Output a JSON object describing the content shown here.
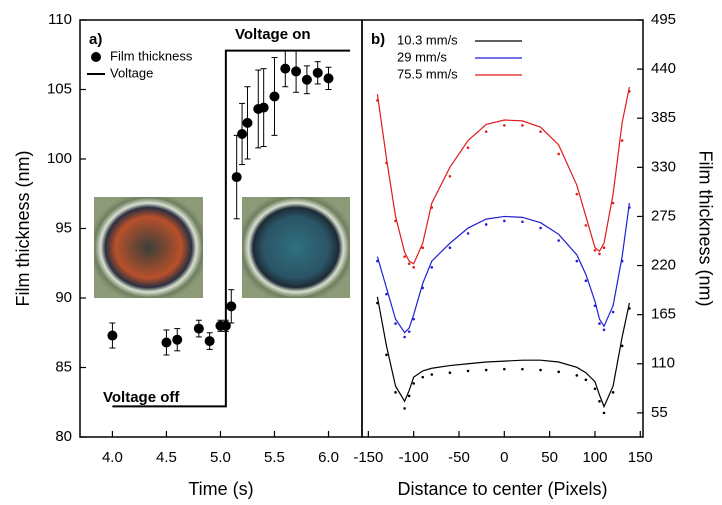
{
  "chart_data": [
    {
      "type": "scatter",
      "panel_label": "a)",
      "xlabel": "Time (s)",
      "ylabel": "Film thickness (nm)",
      "xlim": [
        3.7,
        6.31
      ],
      "xticks": [
        {
          "value": 4,
          "label": "4.0"
        },
        {
          "value": 4.5,
          "label": "4.5"
        },
        {
          "value": 5,
          "label": "5.0"
        },
        {
          "value": 5.5,
          "label": "5.5"
        },
        {
          "value": 6,
          "label": "6.0"
        }
      ],
      "ylim": [
        80,
        110
      ],
      "yticks": [
        80,
        85,
        90,
        95,
        100,
        105,
        110
      ],
      "annotations": [
        "Voltage off",
        "Voltage on"
      ],
      "series": [
        {
          "name": "Film thickness",
          "style": "markers",
          "color": "#000000",
          "x": [
            4.0,
            4.5,
            4.6,
            4.8,
            4.9,
            5.0,
            5.05,
            5.1,
            5.15,
            5.2,
            5.25,
            5.35,
            5.4,
            5.5,
            5.6,
            5.7,
            5.8,
            5.9,
            6.0
          ],
          "values": [
            87.3,
            86.8,
            87.0,
            87.8,
            86.9,
            88.0,
            88.0,
            89.4,
            98.7,
            101.8,
            102.6,
            103.6,
            103.7,
            104.5,
            106.5,
            106.3,
            105.7,
            106.2,
            105.8
          ],
          "errors": [
            0.9,
            0.9,
            0.8,
            0.6,
            0.6,
            0.4,
            0.4,
            1.2,
            3.0,
            2.2,
            2.6,
            2.8,
            2.8,
            2.8,
            1.3,
            1.5,
            1.0,
            0.8,
            0.8
          ]
        },
        {
          "name": "Voltage",
          "style": "line",
          "color": "#000000",
          "x": [
            4.0,
            5.05,
            5.05,
            6.2
          ],
          "values": [
            82.2,
            82.2,
            107.8,
            107.8
          ]
        }
      ]
    },
    {
      "type": "line",
      "panel_label": "b)",
      "xlabel": "Distance to center (Pixels)",
      "y2label": "Film thickness (nm)",
      "xlim": [
        -157,
        153
      ],
      "xticks": [
        -150,
        -100,
        -50,
        0,
        50,
        100,
        150
      ],
      "y2lim": [
        28,
        495
      ],
      "y2ticks": [
        55,
        110,
        165,
        220,
        275,
        330,
        385,
        440,
        495
      ],
      "series": [
        {
          "name": "10.3 mm/s",
          "style": "line",
          "axis": "y2",
          "color": "#000000",
          "x": [
            -140,
            -130,
            -120,
            -110,
            -105,
            -100,
            -90,
            -80,
            -60,
            -40,
            -20,
            0,
            20,
            40,
            60,
            80,
            90,
            100,
            105,
            110,
            120,
            130,
            138
          ],
          "values": [
            185,
            130,
            85,
            68,
            80,
            95,
            102,
            105,
            108,
            110,
            112,
            113,
            114,
            114,
            112,
            106,
            100,
            90,
            75,
            62,
            85,
            140,
            178
          ]
        },
        {
          "name": "29 mm/s",
          "style": "line",
          "axis": "y2",
          "color": "#1f1fd6",
          "x": [
            -140,
            -130,
            -120,
            -110,
            -105,
            -100,
            -90,
            -80,
            -60,
            -40,
            -20,
            0,
            20,
            40,
            60,
            80,
            90,
            100,
            105,
            110,
            120,
            130,
            138
          ],
          "values": [
            230,
            195,
            160,
            145,
            150,
            165,
            200,
            225,
            245,
            262,
            272,
            275,
            274,
            268,
            255,
            232,
            210,
            180,
            160,
            152,
            175,
            230,
            290
          ]
        },
        {
          "name": "75.5 mm/s",
          "style": "line",
          "axis": "y2",
          "color": "#e01b1b",
          "x": [
            -140,
            -130,
            -120,
            -110,
            -105,
            -100,
            -90,
            -80,
            -60,
            -40,
            -20,
            0,
            20,
            40,
            60,
            80,
            90,
            100,
            105,
            110,
            120,
            130,
            138
          ],
          "values": [
            412,
            340,
            275,
            235,
            225,
            222,
            245,
            290,
            330,
            360,
            378,
            383,
            382,
            375,
            355,
            310,
            275,
            240,
            236,
            245,
            300,
            380,
            420
          ]
        },
        {
          "style": "dots",
          "axis": "y2",
          "color": "#000000",
          "x": [
            -140,
            -130,
            -120,
            -110,
            -105,
            -100,
            -90,
            -80,
            -60,
            -40,
            -20,
            0,
            20,
            40,
            60,
            80,
            90,
            100,
            105,
            110,
            120,
            130,
            138
          ],
          "values": [
            178,
            120,
            78,
            60,
            74,
            88,
            95,
            98,
            100,
            102,
            103,
            104,
            104,
            103,
            101,
            97,
            92,
            82,
            68,
            55,
            78,
            130,
            172
          ]
        },
        {
          "style": "dots",
          "axis": "y2",
          "color": "#1f1fd6",
          "x": [
            -140,
            -130,
            -120,
            -110,
            -105,
            -100,
            -90,
            -80,
            -60,
            -40,
            -20,
            0,
            20,
            40,
            60,
            80,
            90,
            100,
            105,
            110,
            120,
            130,
            138
          ],
          "values": [
            225,
            188,
            155,
            140,
            146,
            160,
            195,
            218,
            240,
            256,
            266,
            270,
            269,
            262,
            248,
            225,
            203,
            175,
            155,
            148,
            168,
            225,
            285
          ]
        },
        {
          "style": "dots",
          "axis": "y2",
          "color": "#e01b1b",
          "x": [
            -140,
            -130,
            -120,
            -110,
            -105,
            -100,
            -90,
            -80,
            -60,
            -40,
            -20,
            0,
            20,
            40,
            60,
            80,
            90,
            100,
            105,
            110,
            120,
            130,
            138
          ],
          "values": [
            405,
            335,
            270,
            230,
            222,
            218,
            240,
            285,
            320,
            352,
            370,
            377,
            377,
            370,
            345,
            300,
            265,
            237,
            233,
            240,
            290,
            360,
            415
          ]
        }
      ]
    }
  ]
}
